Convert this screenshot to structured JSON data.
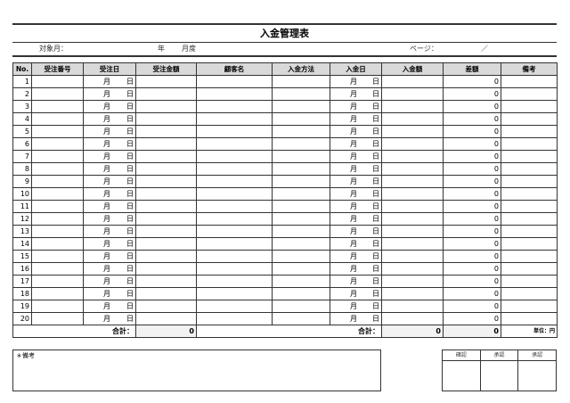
{
  "title": "入金管理表",
  "meta": {
    "target_label": "対象月：",
    "year_label": "年",
    "month_label": "月度",
    "page_label": "ページ：",
    "page_sep": "／"
  },
  "columns": [
    "No.",
    "受注番号",
    "受注日",
    "受注金額",
    "顧客名",
    "入金方法",
    "入金日",
    "入金額",
    "差額",
    "備考"
  ],
  "date_parts": {
    "month": "月",
    "day": "日"
  },
  "rows": [
    {
      "no": "1",
      "diff": "0"
    },
    {
      "no": "2",
      "diff": "0"
    },
    {
      "no": "3",
      "diff": "0"
    },
    {
      "no": "4",
      "diff": "0"
    },
    {
      "no": "5",
      "diff": "0"
    },
    {
      "no": "6",
      "diff": "0"
    },
    {
      "no": "7",
      "diff": "0"
    },
    {
      "no": "8",
      "diff": "0"
    },
    {
      "no": "9",
      "diff": "0"
    },
    {
      "no": "10",
      "diff": "0"
    },
    {
      "no": "11",
      "diff": "0"
    },
    {
      "no": "12",
      "diff": "0"
    },
    {
      "no": "13",
      "diff": "0"
    },
    {
      "no": "14",
      "diff": "0"
    },
    {
      "no": "15",
      "diff": "0"
    },
    {
      "no": "16",
      "diff": "0"
    },
    {
      "no": "17",
      "diff": "0"
    },
    {
      "no": "18",
      "diff": "0"
    },
    {
      "no": "19",
      "diff": "0"
    },
    {
      "no": "20",
      "diff": "0"
    }
  ],
  "totals": {
    "label1": "合計：",
    "order_total": "0",
    "label2": "合計：",
    "payment_total": "0",
    "diff_total": "0",
    "unit": "単位：円"
  },
  "remarks_label": "＊備考",
  "approvals": [
    "確認",
    "承認",
    "承認"
  ]
}
